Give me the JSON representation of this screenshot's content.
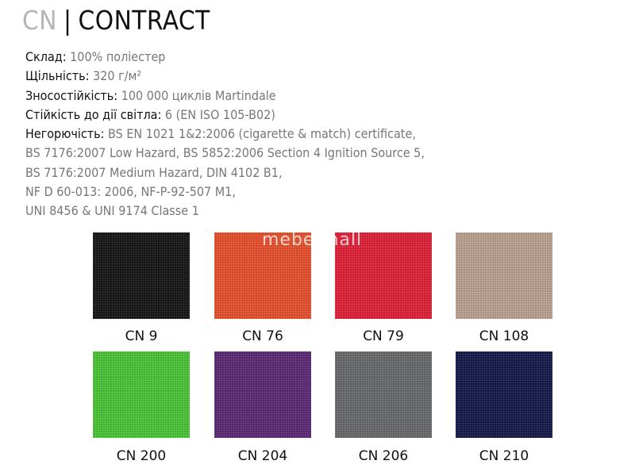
{
  "title": {
    "code": "CN",
    "separator": "|",
    "name": "CONTRACT"
  },
  "specs": [
    {
      "label": "Склад:",
      "value": " 100% поліестер"
    },
    {
      "label": "Щільність:",
      "value": " 320 г/м²"
    },
    {
      "label": "Зносостійкість:",
      "value": " 100 000 циклів Martindale"
    },
    {
      "label": "Стійкість до дії світла:",
      "value": " 6 (EN ISO 105-B02)"
    },
    {
      "label": "Негорючість:",
      "value": " BS EN 1021 1&2:2006 (cigarette & match) certificate,"
    },
    {
      "label": "",
      "value": "BS 7176:2007 Low Hazard, BS 5852:2006 Section 4 Ignition Source 5,"
    },
    {
      "label": "",
      "value": "BS 7176:2007 Medium Hazard, DIN 4102 B1,"
    },
    {
      "label": "",
      "value": "NF D 60-013: 2006, NF-P-92-507 M1,"
    },
    {
      "label": "",
      "value": "UNI 8456 & UNI 9174 Classe 1"
    }
  ],
  "watermark": "mebel-hall",
  "swatches": [
    {
      "name": "CN 9",
      "color": "#151515"
    },
    {
      "name": "CN 76",
      "color": "#f0522c"
    },
    {
      "name": "CN 79",
      "color": "#e82039"
    },
    {
      "name": "CN 108",
      "color": "#c3a795"
    },
    {
      "name": "CN 200",
      "color": "#4ccb37"
    },
    {
      "name": "CN 204",
      "color": "#5d2a77"
    },
    {
      "name": "CN 206",
      "color": "#6c6d6f"
    },
    {
      "name": "CN 210",
      "color": "#141a4a"
    }
  ]
}
